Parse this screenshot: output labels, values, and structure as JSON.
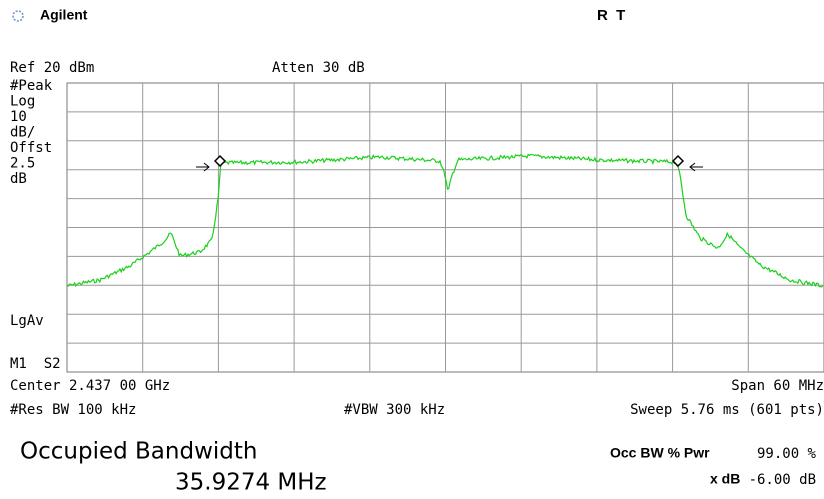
{
  "header": {
    "brand": "Agilent",
    "status": "R  T"
  },
  "settings": {
    "ref": "Ref 20 dBm",
    "atten": "Atten 30 dB"
  },
  "side_labels": [
    "#Peak",
    "Log",
    "10",
    "dB/",
    "Offst",
    "2.5",
    "dB"
  ],
  "detector": "LgAv",
  "markers": "M1  S2",
  "footer": {
    "center": "Center 2.437 00 GHz",
    "span": "Span 60 MHz",
    "rbw": "#Res BW 100 kHz",
    "vbw": "#VBW 300 kHz",
    "sweep": "Sweep 5.76 ms (601 pts)"
  },
  "measurement": {
    "title": "Occupied Bandwidth",
    "result": "35.9274 MHz",
    "pwr_label": "Occ BW % Pwr",
    "pwr_value": "99.00 %",
    "xdb_label": "x dB",
    "xdb_value": "-6.00 dB"
  }
}
